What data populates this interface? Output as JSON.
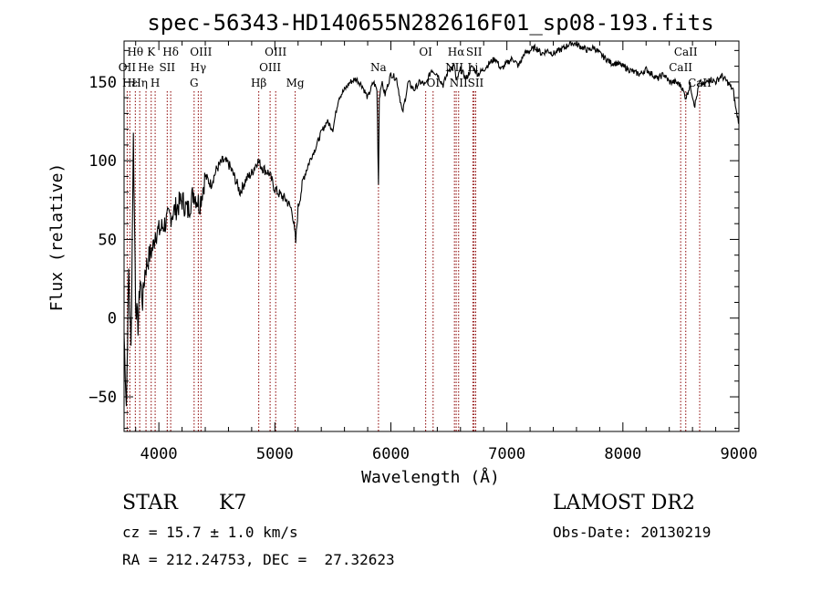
{
  "chart_data": {
    "type": "line",
    "title": "spec-56343-HD140655N282616F01_sp08-193.fits",
    "xlabel": "Wavelength (Å)",
    "ylabel": "Flux (relative)",
    "xlim": [
      3700,
      9000
    ],
    "ylim": [
      -72,
      176
    ],
    "xticks": [
      4000,
      5000,
      6000,
      7000,
      8000,
      9000
    ],
    "yticks": [
      -50,
      0,
      50,
      100,
      150
    ],
    "xtick_labels": [
      "4000",
      "5000",
      "6000",
      "7000",
      "8000",
      "9000"
    ],
    "ytick_labels": [
      "−50",
      "0",
      "50",
      "100",
      "150"
    ],
    "grid": false,
    "series": [
      {
        "x": [
          3700,
          3720,
          3740,
          3760,
          3780,
          3800,
          3820,
          3840,
          3860,
          3880,
          3900,
          3920,
          3950,
          3970,
          4000,
          4050,
          4100,
          4150,
          4200,
          4250,
          4300,
          4350,
          4400,
          4450,
          4500,
          4550,
          4600,
          4650,
          4700,
          4750,
          4800,
          4850,
          4900,
          4950,
          5000,
          5050,
          5100,
          5150,
          5180,
          5200,
          5250,
          5300,
          5350,
          5400,
          5450,
          5500,
          5550,
          5600,
          5650,
          5700,
          5750,
          5800,
          5850,
          5880,
          5893,
          5900,
          5920,
          5950,
          6000,
          6050,
          6100,
          6150,
          6200,
          6250,
          6300,
          6350,
          6400,
          6450,
          6500,
          6550,
          6563,
          6600,
          6650,
          6700,
          6750,
          6800,
          6850,
          6900,
          6950,
          7000,
          7050,
          7100,
          7150,
          7200,
          7250,
          7300,
          7350,
          7400,
          7450,
          7500,
          7550,
          7600,
          7650,
          7700,
          7750,
          7800,
          7850,
          7900,
          7950,
          8000,
          8050,
          8100,
          8150,
          8200,
          8250,
          8300,
          8350,
          8400,
          8450,
          8500,
          8542,
          8580,
          8620,
          8662,
          8700,
          8750,
          8800,
          8850,
          8900,
          8950,
          8980,
          9000
        ],
        "y": [
          -10,
          -55,
          30,
          -20,
          115,
          10,
          -5,
          25,
          10,
          30,
          35,
          40,
          45,
          55,
          55,
          60,
          65,
          70,
          75,
          68,
          80,
          72,
          90,
          85,
          95,
          100,
          98,
          90,
          80,
          88,
          92,
          100,
          95,
          92,
          82,
          78,
          75,
          68,
          48,
          70,
          90,
          100,
          108,
          118,
          125,
          120,
          140,
          145,
          150,
          152,
          148,
          140,
          150,
          145,
          85,
          140,
          150,
          142,
          155,
          152,
          130,
          150,
          145,
          150,
          148,
          158,
          155,
          148,
          158,
          160,
          150,
          158,
          152,
          160,
          155,
          158,
          162,
          165,
          158,
          162,
          165,
          160,
          168,
          170,
          172,
          168,
          170,
          168,
          170,
          172,
          175,
          174,
          172,
          170,
          172,
          168,
          165,
          162,
          162,
          160,
          158,
          156,
          155,
          158,
          155,
          152,
          155,
          150,
          150,
          148,
          140,
          148,
          135,
          150,
          148,
          152,
          150,
          154,
          150,
          145,
          130,
          125
        ]
      }
    ],
    "line_labels": [
      {
        "wavelength": 3797,
        "row": 0,
        "text": "Hθ"
      },
      {
        "wavelength": 3934,
        "row": 0,
        "text": "K"
      },
      {
        "wavelength": 4102,
        "row": 0,
        "text": "Hδ"
      },
      {
        "wavelength": 4363,
        "row": 0,
        "text": "OIII"
      },
      {
        "wavelength": 5007,
        "row": 0,
        "text": "OIII"
      },
      {
        "wavelength": 6300,
        "row": 0,
        "text": "OI"
      },
      {
        "wavelength": 6563,
        "row": 0,
        "text": "Hα"
      },
      {
        "wavelength": 6717,
        "row": 0,
        "text": "SII"
      },
      {
        "wavelength": 8542,
        "row": 0,
        "text": "CaII"
      },
      {
        "wavelength": 3727,
        "row": 1,
        "text": "OII"
      },
      {
        "wavelength": 3889,
        "row": 1,
        "text": "He"
      },
      {
        "wavelength": 4072,
        "row": 1,
        "text": "SII"
      },
      {
        "wavelength": 4340,
        "row": 1,
        "text": "Hγ"
      },
      {
        "wavelength": 4959,
        "row": 1,
        "text": "OIII"
      },
      {
        "wavelength": 5893,
        "row": 1,
        "text": "Na"
      },
      {
        "wavelength": 6548,
        "row": 1,
        "text": "NII"
      },
      {
        "wavelength": 6707,
        "row": 1,
        "text": "Li"
      },
      {
        "wavelength": 8498,
        "row": 1,
        "text": "CaII"
      },
      {
        "wavelength": 3750,
        "row": 2,
        "text": "Hε"
      },
      {
        "wavelength": 3835,
        "row": 2,
        "text": "Hη"
      },
      {
        "wavelength": 3968,
        "row": 2,
        "text": "H"
      },
      {
        "wavelength": 4304,
        "row": 2,
        "text": "G"
      },
      {
        "wavelength": 4861,
        "row": 2,
        "text": "Hβ"
      },
      {
        "wavelength": 5175,
        "row": 2,
        "text": "Mg"
      },
      {
        "wavelength": 6364,
        "row": 2,
        "text": "OI"
      },
      {
        "wavelength": 6584,
        "row": 2,
        "text": "NII"
      },
      {
        "wavelength": 6731,
        "row": 2,
        "text": "SII"
      },
      {
        "wavelength": 8662,
        "row": 2,
        "text": "CaII"
      }
    ],
    "line_marker_color": "#8b0000",
    "spectrum_color": "#000000"
  },
  "info": {
    "object_class": "STAR",
    "subclass": "K7",
    "survey": "LAMOST DR2",
    "redshift_line": "cz = 15.7 ± 1.0 km/s",
    "obs_date_line": "Obs-Date: 20130219",
    "coords_line": "RA = 212.24753, DEC =  27.32623"
  }
}
